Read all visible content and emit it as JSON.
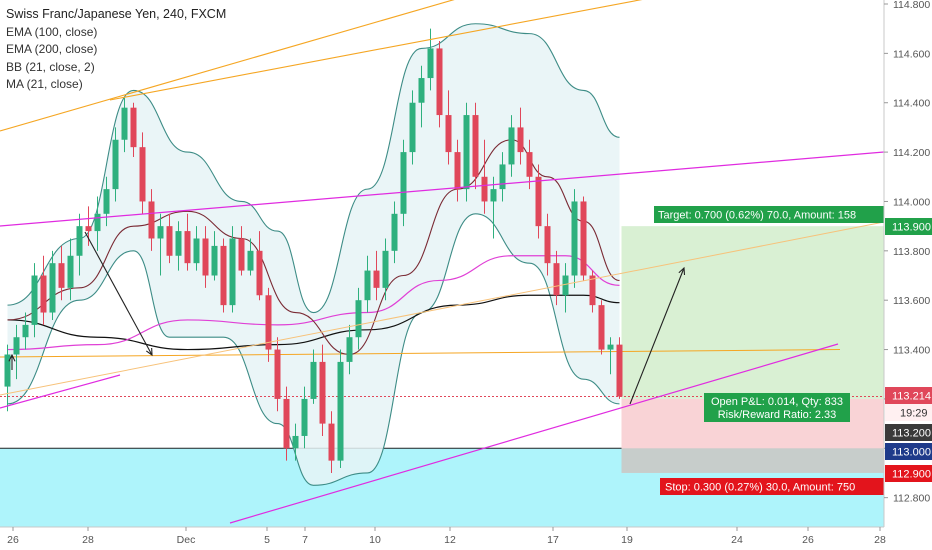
{
  "legend": {
    "title": "Swiss Franc/Japanese Yen, 240, FXCM",
    "indicators": [
      "EMA (100, close)",
      "EMA (200, close)",
      "BB (21, close, 2)",
      "MA (21, close)"
    ]
  },
  "colors": {
    "up": "#2eb07e",
    "down": "#e0475a",
    "bb": "#3d8c86",
    "bb_fill": "#e6f3f6",
    "ma21": "#7a2a34",
    "ema100": "#e040d6",
    "ema200": "#111111",
    "trend_orange": "#f5a623",
    "channel_magenta": "#e02be0",
    "target_fill": "#d9f0d3",
    "stop_fill": "#f9d3d6",
    "support_fill": "#aef4fb",
    "target_tag": "#21a14a",
    "stop_tag": "#e3141c",
    "current_price": "#e0475a"
  },
  "position": {
    "target_label": "Target: 0.700 (0.62%) 70.0, Amount: 158",
    "stop_label": "Stop: 0.300 (0.27%) 30.0, Amount: 750",
    "open_pl_label": "Open P&L: 0.014, Qty: 833",
    "rr_label": "Risk/Reward Ratio: 2.33",
    "entry": 113.2,
    "target": 113.9,
    "stop": 112.9
  },
  "price_tags": {
    "target": "113.900",
    "current": "113.214",
    "countdown": "19:29",
    "entry": "113.200",
    "support": "113.000",
    "stop": "112.900"
  },
  "chart_data": {
    "type": "candlestick",
    "title": "Swiss Franc/Japanese Yen, 240, FXCM",
    "ylim": [
      112.7,
      114.85
    ],
    "y_ticks": [
      "114.800",
      "114.600",
      "114.400",
      "114.200",
      "114.000",
      "113.800",
      "113.600",
      "113.400",
      "113.200",
      "113.000",
      "112.800"
    ],
    "x_ticks": [
      "26",
      "28",
      "Dec",
      "5",
      "7",
      "10",
      "12",
      "17",
      "19",
      "24",
      "26",
      "28"
    ],
    "candles": [
      [
        113.25,
        113.42,
        113.15,
        113.38
      ],
      [
        113.38,
        113.5,
        113.28,
        113.45
      ],
      [
        113.45,
        113.55,
        113.4,
        113.5
      ],
      [
        113.5,
        113.75,
        113.45,
        113.7
      ],
      [
        113.7,
        113.78,
        113.5,
        113.55
      ],
      [
        113.55,
        113.8,
        113.52,
        113.75
      ],
      [
        113.75,
        113.82,
        113.6,
        113.65
      ],
      [
        113.65,
        113.85,
        113.6,
        113.78
      ],
      [
        113.78,
        113.95,
        113.7,
        113.9
      ],
      [
        113.9,
        113.98,
        113.82,
        113.88
      ],
      [
        113.88,
        114.02,
        113.8,
        113.95
      ],
      [
        113.95,
        114.1,
        113.9,
        114.05
      ],
      [
        114.05,
        114.3,
        114.0,
        114.25
      ],
      [
        114.25,
        114.42,
        114.2,
        114.38
      ],
      [
        114.38,
        114.4,
        114.18,
        114.22
      ],
      [
        114.22,
        114.28,
        113.95,
        114.0
      ],
      [
        114.0,
        114.05,
        113.8,
        113.85
      ],
      [
        113.85,
        113.95,
        113.7,
        113.9
      ],
      [
        113.9,
        113.95,
        113.75,
        113.78
      ],
      [
        113.78,
        113.92,
        113.72,
        113.88
      ],
      [
        113.88,
        113.95,
        113.72,
        113.75
      ],
      [
        113.75,
        113.9,
        113.72,
        113.85
      ],
      [
        113.85,
        113.9,
        113.65,
        113.7
      ],
      [
        113.7,
        113.88,
        113.68,
        113.82
      ],
      [
        113.82,
        113.85,
        113.55,
        113.58
      ],
      [
        113.58,
        113.9,
        113.55,
        113.85
      ],
      [
        113.85,
        113.9,
        113.7,
        113.72
      ],
      [
        113.72,
        113.85,
        113.7,
        113.8
      ],
      [
        113.8,
        113.88,
        113.6,
        113.62
      ],
      [
        113.62,
        113.65,
        113.35,
        113.4
      ],
      [
        113.4,
        113.45,
        113.15,
        113.2
      ],
      [
        113.2,
        113.25,
        112.95,
        113.0
      ],
      [
        113.0,
        113.1,
        112.95,
        113.05
      ],
      [
        113.05,
        113.25,
        113.0,
        113.2
      ],
      [
        113.2,
        113.4,
        113.18,
        113.35
      ],
      [
        113.35,
        113.42,
        113.05,
        113.1
      ],
      [
        113.1,
        113.15,
        112.9,
        112.95
      ],
      [
        112.95,
        113.4,
        112.92,
        113.35
      ],
      [
        113.35,
        113.5,
        113.3,
        113.45
      ],
      [
        113.45,
        113.65,
        113.4,
        113.6
      ],
      [
        113.6,
        113.78,
        113.55,
        113.72
      ],
      [
        113.72,
        113.8,
        113.6,
        113.65
      ],
      [
        113.65,
        113.85,
        113.6,
        113.8
      ],
      [
        113.8,
        114.0,
        113.75,
        113.95
      ],
      [
        113.95,
        114.25,
        113.9,
        114.2
      ],
      [
        114.2,
        114.45,
        114.15,
        114.4
      ],
      [
        114.4,
        114.55,
        114.3,
        114.5
      ],
      [
        114.5,
        114.7,
        114.45,
        114.62
      ],
      [
        114.62,
        114.65,
        114.3,
        114.35
      ],
      [
        114.35,
        114.45,
        114.15,
        114.2
      ],
      [
        114.2,
        114.25,
        114.0,
        114.05
      ],
      [
        114.05,
        114.4,
        114.0,
        114.35
      ],
      [
        114.35,
        114.4,
        114.05,
        114.1
      ],
      [
        114.1,
        114.25,
        113.95,
        114.0
      ],
      [
        114.0,
        114.1,
        113.85,
        114.05
      ],
      [
        114.05,
        114.2,
        114.0,
        114.15
      ],
      [
        114.15,
        114.35,
        114.1,
        114.3
      ],
      [
        114.3,
        114.38,
        114.15,
        114.2
      ],
      [
        114.2,
        114.25,
        114.05,
        114.1
      ],
      [
        114.1,
        114.15,
        113.85,
        113.9
      ],
      [
        113.9,
        113.95,
        113.7,
        113.75
      ],
      [
        113.75,
        113.8,
        113.58,
        113.62
      ],
      [
        113.62,
        113.75,
        113.55,
        113.7
      ],
      [
        113.7,
        114.05,
        113.65,
        114.0
      ],
      [
        114.0,
        114.02,
        113.68,
        113.7
      ],
      [
        113.7,
        113.72,
        113.55,
        113.58
      ],
      [
        113.58,
        113.6,
        113.38,
        113.4
      ],
      [
        113.4,
        113.45,
        113.3,
        113.42
      ],
      [
        113.42,
        113.45,
        113.2,
        113.21
      ]
    ],
    "bb_upper": [
      [
        0,
        113.58
      ],
      [
        8,
        113.85
      ],
      [
        14,
        114.45
      ],
      [
        20,
        114.2
      ],
      [
        26,
        114.0
      ],
      [
        30,
        113.88
      ],
      [
        34,
        113.55
      ],
      [
        40,
        114.05
      ],
      [
        46,
        114.62
      ],
      [
        52,
        114.72
      ],
      [
        58,
        114.68
      ],
      [
        64,
        114.45
      ],
      [
        68,
        114.26
      ]
    ],
    "bb_lower": [
      [
        0,
        113.18
      ],
      [
        8,
        113.6
      ],
      [
        14,
        113.8
      ],
      [
        18,
        113.45
      ],
      [
        24,
        113.45
      ],
      [
        30,
        113.1
      ],
      [
        34,
        112.85
      ],
      [
        40,
        112.9
      ],
      [
        46,
        113.55
      ],
      [
        52,
        113.95
      ],
      [
        58,
        113.75
      ],
      [
        64,
        113.28
      ],
      [
        68,
        113.18
      ]
    ],
    "ma21": [
      [
        0,
        113.52
      ],
      [
        8,
        113.65
      ],
      [
        14,
        113.9
      ],
      [
        20,
        113.96
      ],
      [
        26,
        113.85
      ],
      [
        32,
        113.55
      ],
      [
        38,
        113.38
      ],
      [
        44,
        113.7
      ],
      [
        50,
        114.05
      ],
      [
        56,
        114.25
      ],
      [
        60,
        114.1
      ],
      [
        64,
        113.92
      ],
      [
        68,
        113.68
      ]
    ],
    "ema100": [
      [
        0,
        113.4
      ],
      [
        10,
        113.42
      ],
      [
        20,
        113.52
      ],
      [
        30,
        113.5
      ],
      [
        40,
        113.55
      ],
      [
        48,
        113.68
      ],
      [
        56,
        113.78
      ],
      [
        62,
        113.78
      ],
      [
        68,
        113.66
      ]
    ],
    "ema200": [
      [
        0,
        113.52
      ],
      [
        10,
        113.45
      ],
      [
        20,
        113.4
      ],
      [
        30,
        113.42
      ],
      [
        40,
        113.48
      ],
      [
        50,
        113.58
      ],
      [
        58,
        113.62
      ],
      [
        64,
        113.62
      ],
      [
        68,
        113.59
      ]
    ]
  }
}
